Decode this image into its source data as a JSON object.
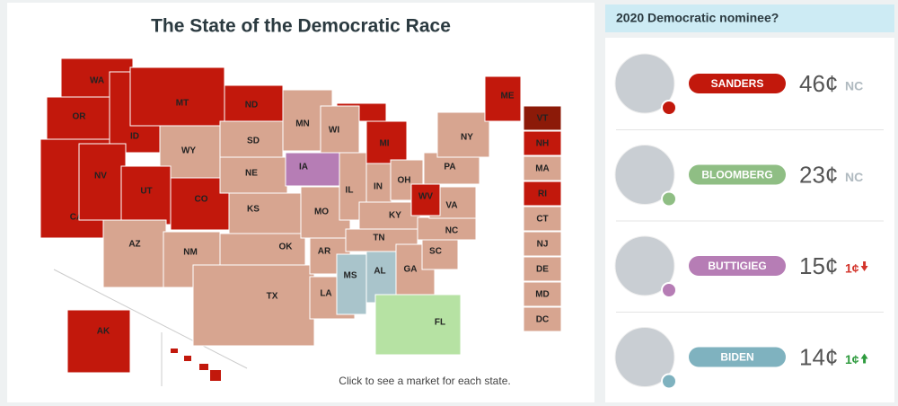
{
  "map": {
    "title": "The State of the Democratic Race",
    "footer": "Click to see a market for each state.",
    "states": [
      {
        "label": "WA",
        "color": "#c2180c"
      },
      {
        "label": "OR",
        "color": "#c2180c"
      },
      {
        "label": "CA",
        "color": "#c2180c"
      },
      {
        "label": "ID",
        "color": "#c2180c"
      },
      {
        "label": "NV",
        "color": "#c2180c"
      },
      {
        "label": "MT",
        "color": "#c2180c"
      },
      {
        "label": "WY",
        "color": "#d7a590"
      },
      {
        "label": "UT",
        "color": "#c2180c"
      },
      {
        "label": "CO",
        "color": "#c2180c"
      },
      {
        "label": "AZ",
        "color": "#d7a590"
      },
      {
        "label": "NM",
        "color": "#d7a590"
      },
      {
        "label": "ND",
        "color": "#c2180c"
      },
      {
        "label": "SD",
        "color": "#d7a590"
      },
      {
        "label": "NE",
        "color": "#d7a590"
      },
      {
        "label": "KS",
        "color": "#d7a590"
      },
      {
        "label": "OK",
        "color": "#d7a590"
      },
      {
        "label": "TX",
        "color": "#d7a590"
      },
      {
        "label": "MN",
        "color": "#d7a590"
      },
      {
        "label": "IA",
        "color": "#b67db5"
      },
      {
        "label": "MO",
        "color": "#d7a590"
      },
      {
        "label": "AR",
        "color": "#d7a590"
      },
      {
        "label": "LA",
        "color": "#d7a590"
      },
      {
        "label": "WI",
        "color": "#d7a590"
      },
      {
        "label": "IL",
        "color": "#d7a590"
      },
      {
        "label": "MI",
        "color": "#c2180c"
      },
      {
        "label": "IN",
        "color": "#d7a590"
      },
      {
        "label": "OH",
        "color": "#d7a590"
      },
      {
        "label": "KY",
        "color": "#d7a590"
      },
      {
        "label": "TN",
        "color": "#d7a590"
      },
      {
        "label": "MS",
        "color": "#a9c4cb"
      },
      {
        "label": "AL",
        "color": "#a9c4cb"
      },
      {
        "label": "GA",
        "color": "#d7a590"
      },
      {
        "label": "FL",
        "color": "#b6e2a3"
      },
      {
        "label": "SC",
        "color": "#d7a590"
      },
      {
        "label": "NC",
        "color": "#d7a590"
      },
      {
        "label": "VA",
        "color": "#d7a590"
      },
      {
        "label": "WV",
        "color": "#c2180c"
      },
      {
        "label": "PA",
        "color": "#d7a590"
      },
      {
        "label": "NY",
        "color": "#d7a590"
      },
      {
        "label": "ME",
        "color": "#c2180c"
      },
      {
        "label": "AK",
        "color": "#c2180c"
      },
      {
        "label": "VT",
        "color": "#8c1a08"
      },
      {
        "label": "NH",
        "color": "#c2180c"
      },
      {
        "label": "MA",
        "color": "#d7a590"
      },
      {
        "label": "RI",
        "color": "#c2180c"
      },
      {
        "label": "CT",
        "color": "#d7a590"
      },
      {
        "label": "NJ",
        "color": "#d7a590"
      },
      {
        "label": "DE",
        "color": "#d7a590"
      },
      {
        "label": "MD",
        "color": "#d7a590"
      },
      {
        "label": "DC",
        "color": "#d7a590"
      }
    ]
  },
  "panel": {
    "header": "2020 Democratic nominee?",
    "candidates": [
      {
        "name": "SANDERS",
        "color": "#c2180c",
        "price": "46¢",
        "change": "NC",
        "direction": "none"
      },
      {
        "name": "BLOOMBERG",
        "color": "#8fbe84",
        "price": "23¢",
        "change": "NC",
        "direction": "none"
      },
      {
        "name": "BUTTIGIEG",
        "color": "#b67db5",
        "price": "15¢",
        "change": "1¢",
        "direction": "down"
      },
      {
        "name": "BIDEN",
        "color": "#7fb2bf",
        "price": "14¢",
        "change": "1¢",
        "direction": "up"
      }
    ]
  }
}
